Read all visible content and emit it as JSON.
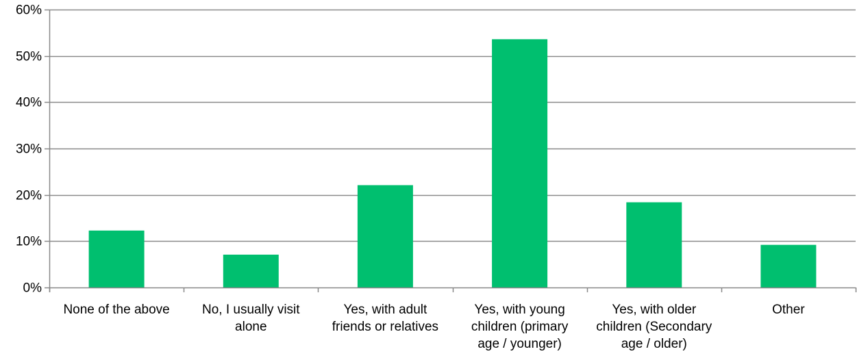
{
  "chart_data": {
    "type": "bar",
    "title": "",
    "xlabel": "",
    "ylabel": "",
    "categories": [
      [
        "None of the above"
      ],
      [
        "No, I usually visit",
        "alone"
      ],
      [
        "Yes, with adult",
        "friends or relatives"
      ],
      [
        "Yes, with young",
        "children (primary",
        "age / younger)"
      ],
      [
        "Yes, with older",
        "children (Secondary",
        "age / older)"
      ],
      [
        "Other"
      ]
    ],
    "values": [
      12.3,
      7.1,
      22.1,
      53.6,
      18.4,
      9.2
    ],
    "ylim": [
      0,
      60
    ],
    "y_ticks": [
      0,
      10,
      20,
      30,
      40,
      50,
      60
    ],
    "y_tick_format": "percent",
    "grid": true,
    "legend": "none",
    "colors": {
      "bar": "#00BF6F",
      "grid": "#898989",
      "axis": "#898989"
    }
  }
}
